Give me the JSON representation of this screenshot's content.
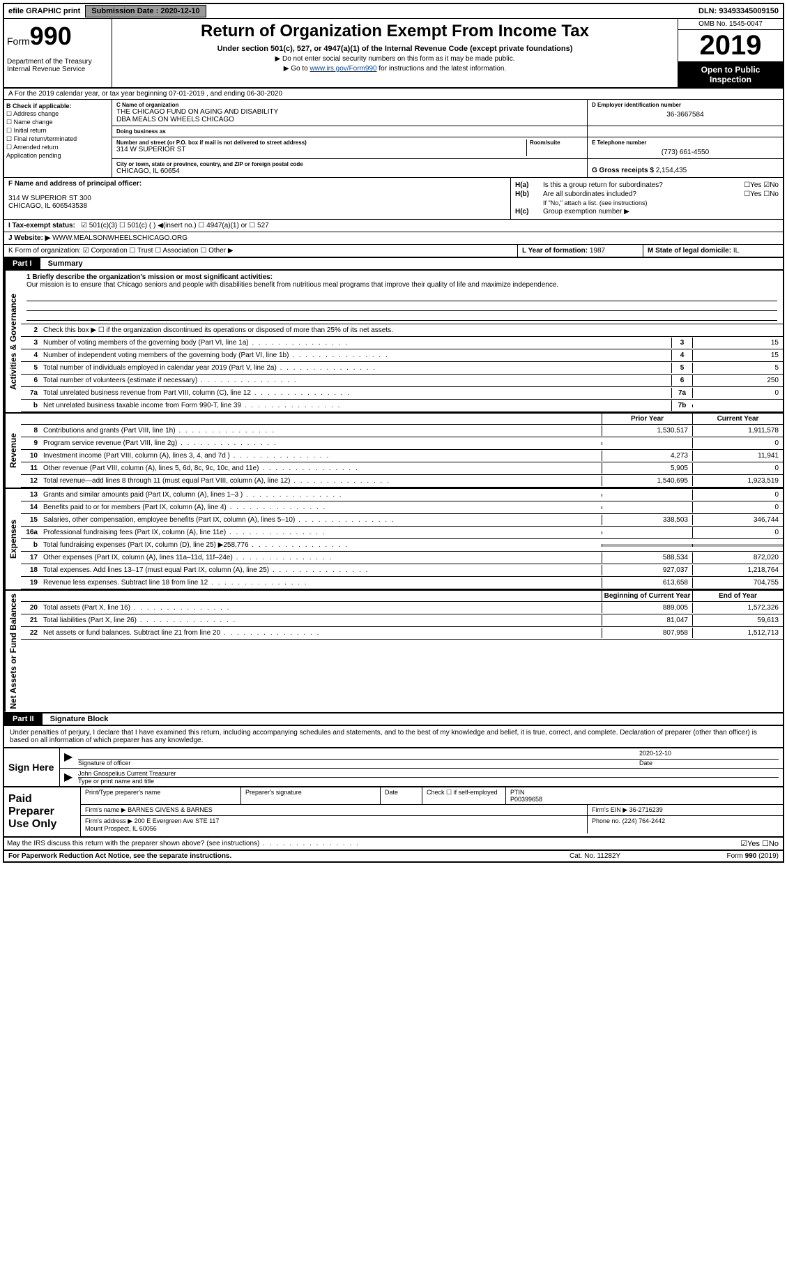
{
  "topbar": {
    "efile": "efile GRAPHIC print",
    "submission_label": "Submission Date :",
    "submission_date": "2020-12-10",
    "dln_label": "DLN:",
    "dln": "93493345009150"
  },
  "header": {
    "form_word": "Form",
    "form_num": "990",
    "dept": "Department of the Treasury\nInternal Revenue Service",
    "title": "Return of Organization Exempt From Income Tax",
    "sub": "Under section 501(c), 527, or 4947(a)(1) of the Internal Revenue Code (except private foundations)",
    "note1": "▶ Do not enter social security numbers on this form as it may be made public.",
    "note2_pre": "▶ Go to ",
    "note2_link": "www.irs.gov/Form990",
    "note2_post": " for instructions and the latest information.",
    "omb": "OMB No. 1545-0047",
    "year": "2019",
    "open": "Open to Public Inspection"
  },
  "row_a": "A For the 2019 calendar year, or tax year beginning 07-01-2019   , and ending 06-30-2020",
  "section_b": {
    "header": "B Check if applicable:",
    "items": [
      "☐ Address change",
      "☐ Name change",
      "☐ Initial return",
      "☐ Final return/terminated",
      "☐ Amended return",
      "  Application pending"
    ]
  },
  "section_c": {
    "name_label": "C Name of organization",
    "name": "THE CHICAGO FUND ON AGING AND DISABILITY\nDBA MEALS ON WHEELS CHICAGO",
    "dba_label": "Doing business as",
    "street_label": "Number and street (or P.O. box if mail is not delivered to street address)",
    "street": "314 W SUPERIOR ST",
    "room_label": "Room/suite",
    "city_label": "City or town, state or province, country, and ZIP or foreign postal code",
    "city": "CHICAGO, IL  60654"
  },
  "section_d": {
    "ein_label": "D Employer identification number",
    "ein": "36-3667584",
    "phone_label": "E Telephone number",
    "phone": "(773) 661-4550",
    "gross_label": "G Gross receipts $",
    "gross": "2,154,435"
  },
  "section_f": {
    "label": "F Name and address of principal officer:",
    "addr": "314 W SUPERIOR ST 300\nCHICAGO, IL  606543538"
  },
  "section_h": {
    "a_label": "H(a)",
    "a_text": "Is this a group return for subordinates?",
    "a_yes": "☐Yes ☑No",
    "b_label": "H(b)",
    "b_text": "Are all subordinates included?",
    "b_yes": "☐Yes ☐No",
    "b_note": "If \"No,\" attach a list. (see instructions)",
    "c_label": "H(c)",
    "c_text": "Group exemption number ▶"
  },
  "tax_status": {
    "label": "I   Tax-exempt status:",
    "opts": "☑ 501(c)(3)   ☐ 501(c) (  ) ◀(insert no.)   ☐ 4947(a)(1) or   ☐ 527"
  },
  "website": {
    "label": "J   Website: ▶",
    "value": "WWW.MEALSONWHEELSCHICAGO.ORG"
  },
  "row_klm": {
    "k": "K Form of organization:  ☑ Corporation  ☐ Trust  ☐ Association  ☐ Other ▶",
    "l_label": "L Year of formation:",
    "l_val": "1987",
    "m_label": "M State of legal domicile:",
    "m_val": "IL"
  },
  "part1": {
    "header": "Part I",
    "title": "Summary",
    "mission_label": "1  Briefly describe the organization's mission or most significant activities:",
    "mission": "Our mission is to ensure that Chicago seniors and people with disabilities benefit from nutritious meal programs that improve their quality of life and maximize independence.",
    "line2": "Check this box ▶ ☐  if the organization discontinued its operations or disposed of more than 25% of its net assets."
  },
  "sidebars": {
    "activities": "Activities & Governance",
    "revenue": "Revenue",
    "expenses": "Expenses",
    "netassets": "Net Assets or Fund Balances"
  },
  "governance_lines": [
    {
      "num": "3",
      "desc": "Number of voting members of the governing body (Part VI, line 1a)",
      "box": "3",
      "val": "15"
    },
    {
      "num": "4",
      "desc": "Number of independent voting members of the governing body (Part VI, line 1b)",
      "box": "4",
      "val": "15"
    },
    {
      "num": "5",
      "desc": "Total number of individuals employed in calendar year 2019 (Part V, line 2a)",
      "box": "5",
      "val": "5"
    },
    {
      "num": "6",
      "desc": "Total number of volunteers (estimate if necessary)",
      "box": "6",
      "val": "250"
    },
    {
      "num": "7a",
      "desc": "Total unrelated business revenue from Part VIII, column (C), line 12",
      "box": "7a",
      "val": "0"
    },
    {
      "num": "b",
      "desc": "Net unrelated business taxable income from Form 990-T, line 39",
      "box": "7b",
      "val": ""
    }
  ],
  "col_headers": {
    "prior": "Prior Year",
    "current": "Current Year"
  },
  "revenue_lines": [
    {
      "num": "8",
      "desc": "Contributions and grants (Part VIII, line 1h)",
      "prior": "1,530,517",
      "current": "1,911,578"
    },
    {
      "num": "9",
      "desc": "Program service revenue (Part VIII, line 2g)",
      "prior": "",
      "current": "0"
    },
    {
      "num": "10",
      "desc": "Investment income (Part VIII, column (A), lines 3, 4, and 7d )",
      "prior": "4,273",
      "current": "11,941"
    },
    {
      "num": "11",
      "desc": "Other revenue (Part VIII, column (A), lines 5, 6d, 8c, 9c, 10c, and 11e)",
      "prior": "5,905",
      "current": "0"
    },
    {
      "num": "12",
      "desc": "Total revenue—add lines 8 through 11 (must equal Part VIII, column (A), line 12)",
      "prior": "1,540,695",
      "current": "1,923,519"
    }
  ],
  "expense_lines": [
    {
      "num": "13",
      "desc": "Grants and similar amounts paid (Part IX, column (A), lines 1–3 )",
      "prior": "",
      "current": "0"
    },
    {
      "num": "14",
      "desc": "Benefits paid to or for members (Part IX, column (A), line 4)",
      "prior": "",
      "current": "0"
    },
    {
      "num": "15",
      "desc": "Salaries, other compensation, employee benefits (Part IX, column (A), lines 5–10)",
      "prior": "338,503",
      "current": "346,744"
    },
    {
      "num": "16a",
      "desc": "Professional fundraising fees (Part IX, column (A), line 11e)",
      "prior": "",
      "current": "0"
    },
    {
      "num": "b",
      "desc": "Total fundraising expenses (Part IX, column (D), line 25) ▶258,776",
      "prior": "shaded",
      "current": "shaded"
    },
    {
      "num": "17",
      "desc": "Other expenses (Part IX, column (A), lines 11a–11d, 11f–24e)",
      "prior": "588,534",
      "current": "872,020"
    },
    {
      "num": "18",
      "desc": "Total expenses. Add lines 13–17 (must equal Part IX, column (A), line 25)",
      "prior": "927,037",
      "current": "1,218,764"
    },
    {
      "num": "19",
      "desc": "Revenue less expenses. Subtract line 18 from line 12",
      "prior": "613,658",
      "current": "704,755"
    }
  ],
  "netassets_headers": {
    "begin": "Beginning of Current Year",
    "end": "End of Year"
  },
  "netassets_lines": [
    {
      "num": "20",
      "desc": "Total assets (Part X, line 16)",
      "prior": "889,005",
      "current": "1,572,326"
    },
    {
      "num": "21",
      "desc": "Total liabilities (Part X, line 26)",
      "prior": "81,047",
      "current": "59,613"
    },
    {
      "num": "22",
      "desc": "Net assets or fund balances. Subtract line 21 from line 20",
      "prior": "807,958",
      "current": "1,512,713"
    }
  ],
  "part2": {
    "header": "Part II",
    "title": "Signature Block",
    "penalty": "Under penalties of perjury, I declare that I have examined this return, including accompanying schedules and statements, and to the best of my knowledge and belief, it is true, correct, and complete. Declaration of preparer (other than officer) is based on all information of which preparer has any knowledge."
  },
  "sign": {
    "label": "Sign Here",
    "sig_label": "Signature of officer",
    "date_label": "Date",
    "date": "2020-12-10",
    "name": "John Gnospelius  Current Treasurer",
    "name_label": "Type or print name and title"
  },
  "prep": {
    "label": "Paid Preparer Use Only",
    "name_label": "Print/Type preparer's name",
    "sig_label": "Preparer's signature",
    "date_label": "Date",
    "check_label": "Check ☐ if self-employed",
    "ptin_label": "PTIN",
    "ptin": "P00399658",
    "firm_label": "Firm's name    ▶",
    "firm": "BARNES GIVENS & BARNES",
    "ein_label": "Firm's EIN ▶",
    "ein": "36-2716239",
    "addr_label": "Firm's address ▶",
    "addr": "200 E Evergreen Ave STE 117\nMount Prospect, IL  60056",
    "phone_label": "Phone no.",
    "phone": "(224) 764-2442"
  },
  "discuss": "May the IRS discuss this return with the preparer shown above? (see instructions)",
  "discuss_yn": "☑Yes  ☐No",
  "footer": {
    "left": "For Paperwork Reduction Act Notice, see the separate instructions.",
    "mid": "Cat. No. 11282Y",
    "right": "Form 990 (2019)"
  }
}
